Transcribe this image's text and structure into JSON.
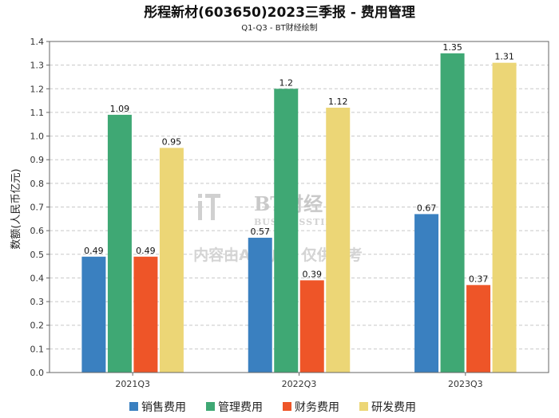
{
  "chart_data": {
    "type": "bar",
    "title": "彤程新材(603650)2023三季报 - 费用管理",
    "subtitle": "Q1-Q3 - BT财经绘制",
    "ylabel": "数额(人民币亿元)",
    "xlabel": "",
    "categories": [
      "2021Q3",
      "2022Q3",
      "2023Q3"
    ],
    "ylim": [
      0,
      1.4
    ],
    "yticks": [
      "0.0",
      "0.1",
      "0.2",
      "0.3",
      "0.4",
      "0.5",
      "0.6",
      "0.7",
      "0.8",
      "0.9",
      "1.0",
      "1.1",
      "1.2",
      "1.3",
      "1.4"
    ],
    "grid": true,
    "legend_position": "bottom",
    "series": [
      {
        "name": "销售费用",
        "color": "#3a80c0",
        "values": [
          0.49,
          0.57,
          0.67
        ],
        "labels": [
          "0.49",
          "0.57",
          "0.67"
        ]
      },
      {
        "name": "管理费用",
        "color": "#3fa874",
        "values": [
          1.09,
          1.2,
          1.35
        ],
        "labels": [
          "1.09",
          "1.2",
          "1.35"
        ]
      },
      {
        "name": "财务费用",
        "color": "#ee5528",
        "values": [
          0.49,
          0.39,
          0.37
        ],
        "labels": [
          "0.49",
          "0.39",
          "0.37"
        ]
      },
      {
        "name": "研发费用",
        "color": "#ecd676",
        "values": [
          0.95,
          1.12,
          1.31
        ],
        "labels": [
          "0.95",
          "1.12",
          "1.31"
        ]
      }
    ]
  },
  "watermark": {
    "logo": "BT财经",
    "sub": "BUSINESSTIMES",
    "note": "内容由AI生成，仅供参考"
  }
}
